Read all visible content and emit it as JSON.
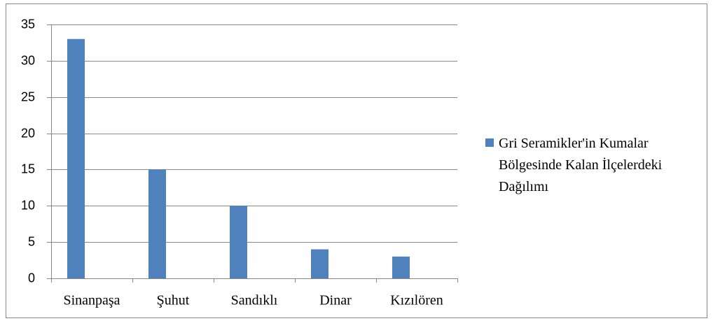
{
  "chart_data": {
    "type": "bar",
    "categories": [
      "Sinanpaşa",
      "Şuhut",
      "Sandıklı",
      "Dinar",
      "Kızılören"
    ],
    "series": [
      {
        "name": "Gri Seramikler'in Kumalar Bölgesinde Kalan İlçelerdeki Dağılımı",
        "color": "#4f81bd",
        "values": [
          33,
          15,
          10,
          4,
          3
        ]
      }
    ],
    "ylim": [
      0,
      35
    ],
    "yticks": [
      0,
      5,
      10,
      15,
      20,
      25,
      30,
      35
    ],
    "grid": true,
    "legend": "right"
  }
}
